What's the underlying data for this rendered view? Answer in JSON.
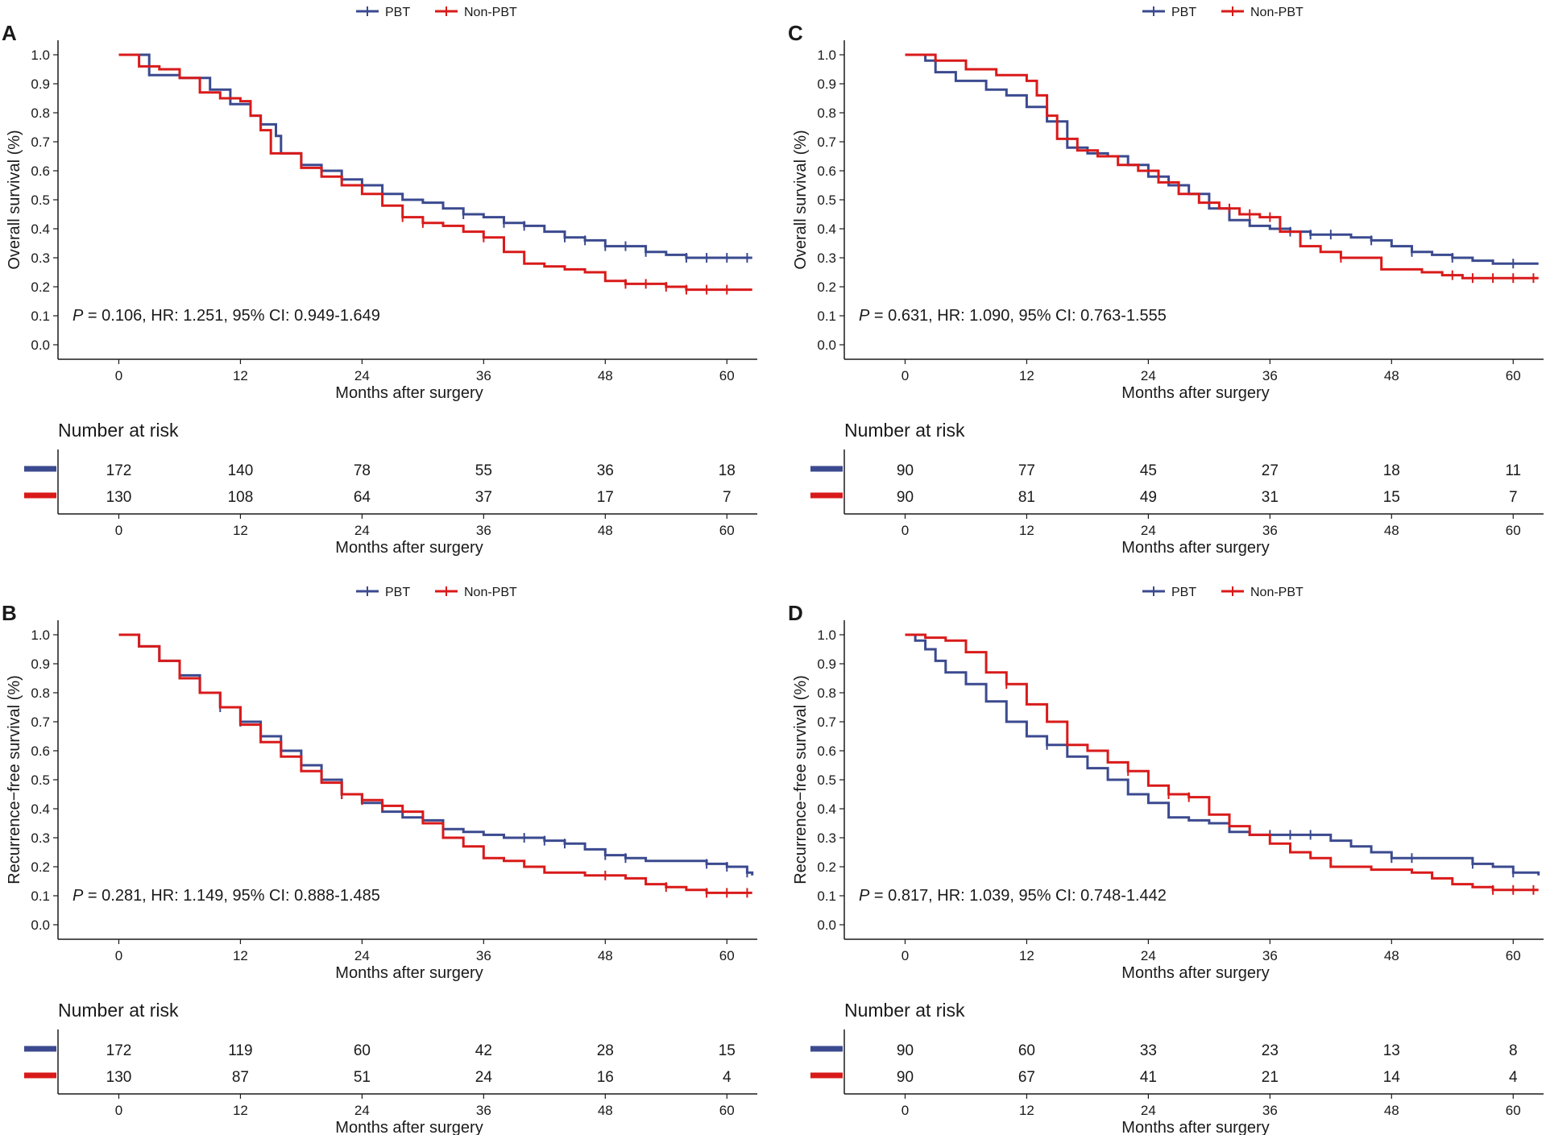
{
  "legend": {
    "pbt": "PBT",
    "non_pbt": "Non-PBT"
  },
  "colors": {
    "pbt": "#3b4a8f",
    "non_pbt": "#d91a1a",
    "axis": "#1a1a1a"
  },
  "chart_data": [
    {
      "label": "A",
      "type": "line",
      "ylabel": "Overall survival (%)",
      "xlabel": "Months after surgery",
      "xlim": [
        -6,
        63
      ],
      "ylim": [
        -0.05,
        1.05
      ],
      "xticks": [
        0,
        12,
        24,
        36,
        48,
        60
      ],
      "yticks": [
        "0.0",
        "0.1",
        "0.2",
        "0.3",
        "0.4",
        "0.5",
        "0.6",
        "0.7",
        "0.8",
        "0.9",
        "1.0"
      ],
      "annotation": {
        "p_label": "P",
        "text": " = 0.106, HR: 1.251, 95% CI: 0.949-1.649"
      },
      "series": [
        {
          "name": "PBT",
          "x": [
            0,
            3,
            6,
            9,
            11,
            13,
            14,
            15.5,
            16,
            18,
            20,
            22,
            24,
            26,
            28,
            30,
            32,
            34,
            36,
            38,
            40,
            42,
            44,
            46,
            48,
            50,
            52,
            54,
            56,
            58,
            60,
            62.5
          ],
          "y": [
            1.0,
            0.93,
            0.92,
            0.88,
            0.83,
            0.79,
            0.76,
            0.72,
            0.66,
            0.62,
            0.6,
            0.57,
            0.55,
            0.52,
            0.5,
            0.49,
            0.47,
            0.45,
            0.44,
            0.42,
            0.41,
            0.39,
            0.37,
            0.36,
            0.34,
            0.34,
            0.32,
            0.31,
            0.3,
            0.3,
            0.3,
            0.3
          ],
          "censor": [
            34,
            38,
            40,
            44,
            46,
            48,
            50,
            52,
            56,
            58,
            60,
            62
          ]
        },
        {
          "name": "Non-PBT",
          "x": [
            0,
            2,
            4,
            6,
            8,
            10,
            12,
            13,
            14,
            15,
            18,
            20,
            22,
            24,
            26,
            28,
            30,
            32,
            34,
            36,
            38,
            40,
            42,
            44,
            46,
            48,
            50,
            52,
            54,
            56,
            58,
            60,
            62.5
          ],
          "y": [
            1.0,
            0.96,
            0.95,
            0.92,
            0.87,
            0.85,
            0.84,
            0.79,
            0.74,
            0.66,
            0.61,
            0.58,
            0.55,
            0.52,
            0.48,
            0.44,
            0.42,
            0.41,
            0.39,
            0.37,
            0.32,
            0.28,
            0.27,
            0.26,
            0.25,
            0.22,
            0.21,
            0.21,
            0.2,
            0.19,
            0.19,
            0.19,
            0.19
          ],
          "censor": [
            28,
            30,
            36,
            50,
            52,
            54,
            56,
            58,
            60
          ]
        }
      ],
      "risk": {
        "title": "Number at risk",
        "xlabel": "Months after surgery",
        "pbt": [
          172,
          140,
          78,
          55,
          36,
          18
        ],
        "non_pbt": [
          130,
          108,
          64,
          37,
          17,
          7
        ]
      }
    },
    {
      "label": "C",
      "type": "line",
      "ylabel": "Overall survival (%)",
      "xlabel": "Months after surgery",
      "xlim": [
        -6,
        63
      ],
      "ylim": [
        -0.05,
        1.05
      ],
      "xticks": [
        0,
        12,
        24,
        36,
        48,
        60
      ],
      "yticks": [
        "0.0",
        "0.1",
        "0.2",
        "0.3",
        "0.4",
        "0.5",
        "0.6",
        "0.7",
        "0.8",
        "0.9",
        "1.0"
      ],
      "annotation": {
        "p_label": "P",
        "text": " = 0.631, HR: 1.090, 95% CI: 0.763-1.555"
      },
      "series": [
        {
          "name": "PBT",
          "x": [
            0,
            2,
            3,
            5,
            8,
            10,
            12,
            14,
            16,
            18,
            20,
            22,
            24,
            26,
            28,
            30,
            32,
            34,
            36,
            38,
            40,
            42,
            44,
            46,
            48,
            50,
            52,
            54,
            56,
            58,
            60,
            62.5
          ],
          "y": [
            1.0,
            0.98,
            0.94,
            0.91,
            0.88,
            0.86,
            0.82,
            0.77,
            0.68,
            0.66,
            0.65,
            0.62,
            0.58,
            0.55,
            0.52,
            0.47,
            0.43,
            0.41,
            0.4,
            0.39,
            0.38,
            0.38,
            0.37,
            0.36,
            0.34,
            0.32,
            0.31,
            0.3,
            0.29,
            0.28,
            0.28,
            0.28
          ],
          "censor": [
            38,
            40,
            42,
            46,
            50,
            54,
            60
          ]
        },
        {
          "name": "Non-PBT",
          "x": [
            0,
            3,
            6,
            9,
            12,
            13,
            14,
            15,
            17,
            19,
            21,
            23,
            25,
            27,
            29,
            31,
            33,
            35,
            37,
            39,
            41,
            43,
            45,
            47,
            49,
            51,
            53,
            55,
            57,
            60,
            62.5
          ],
          "y": [
            1.0,
            0.98,
            0.95,
            0.93,
            0.91,
            0.86,
            0.79,
            0.71,
            0.67,
            0.65,
            0.62,
            0.6,
            0.56,
            0.52,
            0.49,
            0.47,
            0.45,
            0.44,
            0.39,
            0.34,
            0.32,
            0.3,
            0.3,
            0.26,
            0.26,
            0.25,
            0.24,
            0.23,
            0.23,
            0.23,
            0.23
          ],
          "censor": [
            32,
            34,
            36,
            43,
            54,
            56,
            58,
            60,
            62
          ]
        }
      ],
      "risk": {
        "title": "Number at risk",
        "xlabel": "Months after surgery",
        "pbt": [
          90,
          77,
          45,
          27,
          18,
          11
        ],
        "non_pbt": [
          90,
          81,
          49,
          31,
          15,
          7
        ]
      }
    },
    {
      "label": "B",
      "type": "line",
      "ylabel": "Recurrence−free survival (%)",
      "xlabel": "Months after surgery",
      "xlim": [
        -6,
        63
      ],
      "ylim": [
        -0.05,
        1.05
      ],
      "xticks": [
        0,
        12,
        24,
        36,
        48,
        60
      ],
      "yticks": [
        "0.0",
        "0.1",
        "0.2",
        "0.3",
        "0.4",
        "0.5",
        "0.6",
        "0.7",
        "0.8",
        "0.9",
        "1.0"
      ],
      "annotation": {
        "p_label": "P",
        "text": " = 0.281, HR: 1.149, 95% CI: 0.888-1.485"
      },
      "series": [
        {
          "name": "PBT",
          "x": [
            0,
            2,
            4,
            6,
            8,
            10,
            12,
            14,
            16,
            18,
            20,
            22,
            24,
            26,
            28,
            30,
            32,
            34,
            36,
            38,
            40,
            42,
            44,
            46,
            48,
            50,
            52,
            54,
            56,
            58,
            60,
            62,
            62.5
          ],
          "y": [
            1.0,
            0.96,
            0.91,
            0.86,
            0.8,
            0.75,
            0.7,
            0.65,
            0.6,
            0.55,
            0.5,
            0.45,
            0.42,
            0.39,
            0.37,
            0.36,
            0.33,
            0.32,
            0.31,
            0.3,
            0.3,
            0.29,
            0.28,
            0.26,
            0.24,
            0.23,
            0.22,
            0.22,
            0.22,
            0.21,
            0.2,
            0.18,
            0.17
          ],
          "censor": [
            10,
            12,
            22,
            40,
            42,
            44,
            48,
            50,
            58,
            60,
            62
          ]
        },
        {
          "name": "Non-PBT",
          "x": [
            0,
            2,
            4,
            6,
            8,
            10,
            12,
            14,
            16,
            18,
            20,
            22,
            24,
            26,
            28,
            30,
            32,
            34,
            36,
            38,
            40,
            42,
            44,
            46,
            48,
            50,
            52,
            54,
            56,
            58,
            60,
            62.5
          ],
          "y": [
            1.0,
            0.96,
            0.91,
            0.85,
            0.8,
            0.75,
            0.69,
            0.63,
            0.58,
            0.53,
            0.49,
            0.45,
            0.43,
            0.41,
            0.39,
            0.35,
            0.3,
            0.27,
            0.23,
            0.22,
            0.2,
            0.18,
            0.18,
            0.17,
            0.17,
            0.16,
            0.14,
            0.13,
            0.12,
            0.11,
            0.11,
            0.11
          ],
          "censor": [
            22,
            24,
            26,
            48,
            54,
            58,
            60,
            62
          ]
        }
      ],
      "risk": {
        "title": "Number at risk",
        "xlabel": "Months after surgery",
        "pbt": [
          172,
          119,
          60,
          42,
          28,
          15
        ],
        "non_pbt": [
          130,
          87,
          51,
          24,
          16,
          4
        ]
      }
    },
    {
      "label": "D",
      "type": "line",
      "ylabel": "Recurrence−free survival (%)",
      "xlabel": "Months after surgery",
      "xlim": [
        -6,
        63
      ],
      "ylim": [
        -0.05,
        1.05
      ],
      "xticks": [
        0,
        12,
        24,
        36,
        48,
        60
      ],
      "yticks": [
        "0.0",
        "0.1",
        "0.2",
        "0.3",
        "0.4",
        "0.5",
        "0.6",
        "0.7",
        "0.8",
        "0.9",
        "1.0"
      ],
      "annotation": {
        "p_label": "P",
        "text": " = 0.817, HR: 1.039, 95% CI: 0.748-1.442"
      },
      "series": [
        {
          "name": "PBT",
          "x": [
            0,
            1,
            2,
            3,
            4,
            6,
            8,
            10,
            12,
            14,
            16,
            18,
            20,
            22,
            24,
            26,
            28,
            30,
            32,
            34,
            36,
            38,
            40,
            42,
            44,
            46,
            48,
            50,
            52,
            54,
            56,
            58,
            60,
            62.5
          ],
          "y": [
            1.0,
            0.98,
            0.95,
            0.91,
            0.87,
            0.83,
            0.77,
            0.7,
            0.65,
            0.62,
            0.58,
            0.54,
            0.5,
            0.45,
            0.42,
            0.37,
            0.36,
            0.35,
            0.32,
            0.31,
            0.31,
            0.31,
            0.31,
            0.29,
            0.27,
            0.25,
            0.23,
            0.23,
            0.23,
            0.23,
            0.21,
            0.2,
            0.18,
            0.17
          ],
          "censor": [
            14,
            36,
            38,
            40,
            48,
            50,
            56,
            60
          ]
        },
        {
          "name": "Non-PBT",
          "x": [
            0,
            2,
            4,
            6,
            8,
            10,
            12,
            14,
            16,
            18,
            20,
            22,
            24,
            26,
            28,
            30,
            32,
            34,
            36,
            38,
            40,
            42,
            44,
            46,
            48,
            50,
            52,
            54,
            56,
            58,
            60,
            62.5
          ],
          "y": [
            1.0,
            0.99,
            0.98,
            0.94,
            0.87,
            0.83,
            0.76,
            0.7,
            0.62,
            0.6,
            0.56,
            0.53,
            0.48,
            0.45,
            0.44,
            0.38,
            0.34,
            0.31,
            0.28,
            0.25,
            0.23,
            0.2,
            0.2,
            0.19,
            0.19,
            0.18,
            0.16,
            0.14,
            0.13,
            0.12,
            0.12,
            0.12
          ],
          "censor": [
            10,
            22,
            26,
            28,
            58,
            60,
            62
          ]
        }
      ],
      "risk": {
        "title": "Number at risk",
        "xlabel": "Months after surgery",
        "pbt": [
          90,
          60,
          33,
          23,
          13,
          8
        ],
        "non_pbt": [
          90,
          67,
          41,
          21,
          14,
          4
        ]
      }
    }
  ]
}
